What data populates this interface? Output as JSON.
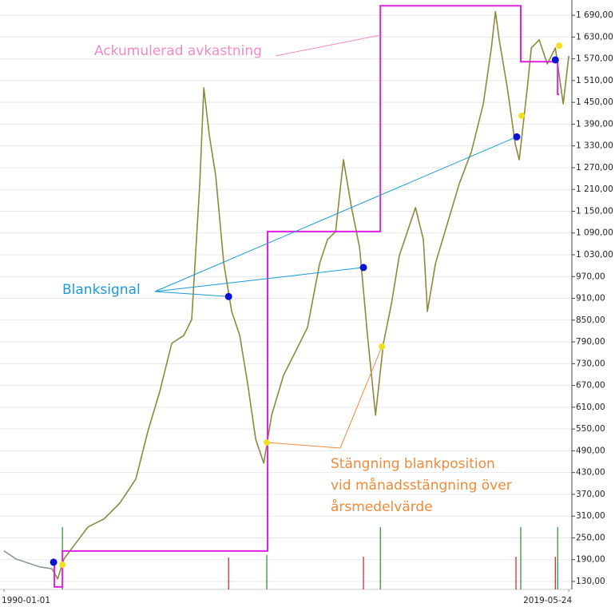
{
  "chart_data": {
    "type": "price",
    "xlim": [
      1989.79,
      2019.56
    ],
    "xticks": [
      {
        "value": 1990.0,
        "label": "1990-01-01"
      },
      {
        "value": 2019.4,
        "label": "2019-05-24"
      }
    ],
    "ylim": [
      108,
      1732
    ],
    "yticks": [
      {
        "value": 130,
        "label": "130,00"
      },
      {
        "value": 190,
        "label": "190,00"
      },
      {
        "value": 250,
        "label": "250,00"
      },
      {
        "value": 310,
        "label": "310,00"
      },
      {
        "value": 370,
        "label": "370,00"
      },
      {
        "value": 430,
        "label": "430,00"
      },
      {
        "value": 490,
        "label": "490,00"
      },
      {
        "value": 550,
        "label": "550,00"
      },
      {
        "value": 610,
        "label": "610,00"
      },
      {
        "value": 670,
        "label": "670,00"
      },
      {
        "value": 730,
        "label": "730,00"
      },
      {
        "value": 790,
        "label": "790,00"
      },
      {
        "value": 850,
        "label": "850,00"
      },
      {
        "value": 910,
        "label": "910,00"
      },
      {
        "value": 970,
        "label": "970,00"
      },
      {
        "value": 1030,
        "label": "1 030,00"
      },
      {
        "value": 1090,
        "label": "1 090,00"
      },
      {
        "value": 1150,
        "label": "1 150,00"
      },
      {
        "value": 1210,
        "label": "1 210,00"
      },
      {
        "value": 1270,
        "label": "1 270,00"
      },
      {
        "value": 1330,
        "label": "1 330,00"
      },
      {
        "value": 1390,
        "label": "1 390,00"
      },
      {
        "value": 1450,
        "label": "1 450,00"
      },
      {
        "value": 1510,
        "label": "1 510,00"
      },
      {
        "value": 1570,
        "label": "1 570,00"
      },
      {
        "value": 1630,
        "label": "1 630,00"
      },
      {
        "value": 1690,
        "label": "1 690,00"
      }
    ],
    "grid": true,
    "x": [
      1990.0,
      1990.62,
      1991.25,
      1991.87,
      1992.5,
      1992.79,
      1993.12,
      1993.74,
      1994.37,
      1995.2,
      1996.03,
      1996.86,
      1997.49,
      1998.11,
      1998.73,
      1999.36,
      1999.77,
      2000.19,
      2000.4,
      2000.69,
      2001.02,
      2001.44,
      2001.85,
      2002.27,
      2002.68,
      2003.1,
      2003.52,
      2003.93,
      2004.55,
      2005.18,
      2005.8,
      2006.43,
      2006.84,
      2007.26,
      2007.67,
      2008.09,
      2008.51,
      2008.92,
      2009.34,
      2009.75,
      2010.17,
      2010.58,
      2011.0,
      2011.42,
      2011.83,
      2012.04,
      2012.46,
      2013.08,
      2013.7,
      2014.33,
      2014.95,
      2015.37,
      2015.58,
      2015.78,
      2016.2,
      2016.61,
      2016.82,
      2017.24,
      2017.45,
      2017.86,
      2018.28,
      2018.7,
      2019.11,
      2019.4
    ],
    "series": [
      {
        "color": "#8a9a98",
        "values": [
          214,
          192,
          181,
          170,
          165,
          null,
          null,
          null,
          null,
          null,
          null,
          null,
          null,
          null,
          null,
          null,
          null,
          null,
          null,
          null,
          null,
          null,
          null,
          null,
          null,
          null,
          null,
          null,
          null,
          null,
          null,
          null,
          null,
          null,
          null,
          null,
          null,
          null,
          null,
          null,
          null,
          null,
          null,
          null,
          null,
          null,
          null,
          null,
          null,
          null,
          null,
          null,
          null,
          null,
          null,
          null,
          null,
          null,
          null,
          null,
          null,
          null,
          null,
          null
        ]
      },
      {
        "color": "#8c8a3a",
        "values": [
          null,
          null,
          null,
          null,
          165,
          137,
          192,
          236,
          280,
          302,
          346,
          412,
          544,
          654,
          786,
          808,
          852,
          1226,
          1490,
          1358,
          1248,
          1006,
          874,
          808,
          676,
          522,
          456,
          588,
          698,
          764,
          830,
          1006,
          1072,
          1094,
          1292,
          1160,
          1050,
          808,
          588,
          786,
          896,
          1028,
          1094,
          1160,
          1072,
          874,
          1006,
          1116,
          1226,
          1314,
          1446,
          1600,
          1700,
          1622,
          1490,
          1336,
          1292,
          1490,
          1600,
          1622,
          1556,
          1600,
          1446,
          1578
        ]
      }
    ],
    "cumulative": {
      "name": "Ackumulerad avkastning",
      "color": "#e020e0",
      "x": [
        1992.58,
        1992.62,
        1993.04,
        2003.72,
        2009.59,
        2016.9,
        2018.82,
        2018.9
      ],
      "values": [
        181,
        115,
        214,
        1094,
        1716,
        1562,
        1472,
        1472
      ]
    },
    "short_signals": {
      "name": "Blanksignal",
      "color": "#0a14d0",
      "x": [
        1992.58,
        2001.69,
        2008.71,
        2016.69,
        2018.7
      ],
      "values": [
        183,
        915,
        995,
        1355,
        1567
      ]
    },
    "close_signals": {
      "name": "Stängning blankposition vid månadsstängning över årsmedelvärde",
      "color": "#f0e020",
      "lines": [
        "Stängning blankposition",
        "vid månadsstängning över",
        "årsmedelvärde"
      ],
      "x": [
        1993.04,
        2003.68,
        2009.67,
        2016.94,
        2018.9
      ],
      "values": [
        176,
        513,
        777,
        1413,
        1606
      ]
    },
    "signal_bars": {
      "x": [
        1993.04,
        2001.69,
        2003.68,
        2008.71,
        2009.59,
        2016.65,
        2016.9,
        2018.7,
        2018.82
      ],
      "values": [
        280,
        196,
        203,
        198,
        280,
        198,
        280,
        198,
        280
      ],
      "colors": [
        "#2a8a2a",
        "#d02020",
        "#2a8a2a",
        "#d02020",
        "#2a8a2a",
        "#d02020",
        "#2a8a2a",
        "#d02020",
        "#2a8a2a"
      ]
    }
  }
}
